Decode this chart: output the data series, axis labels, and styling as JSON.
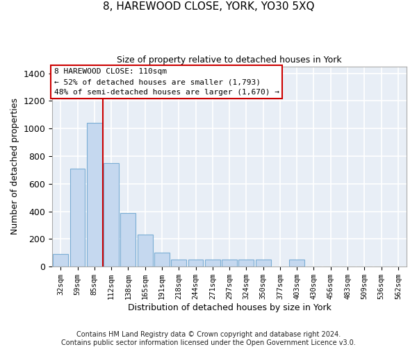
{
  "title": "8, HAREWOOD CLOSE, YORK, YO30 5XQ",
  "subtitle": "Size of property relative to detached houses in York",
  "xlabel": "Distribution of detached houses by size in York",
  "ylabel": "Number of detached properties",
  "bar_color": "#c5d8ef",
  "bar_edge_color": "#7aadd4",
  "background_color": "#e8eef6",
  "grid_color": "#ffffff",
  "categories": [
    "32sqm",
    "59sqm",
    "85sqm",
    "112sqm",
    "138sqm",
    "165sqm",
    "191sqm",
    "218sqm",
    "244sqm",
    "271sqm",
    "297sqm",
    "324sqm",
    "350sqm",
    "377sqm",
    "403sqm",
    "430sqm",
    "456sqm",
    "483sqm",
    "509sqm",
    "536sqm",
    "562sqm"
  ],
  "values": [
    90,
    710,
    1040,
    750,
    390,
    230,
    100,
    50,
    50,
    50,
    50,
    50,
    50,
    0,
    50,
    0,
    0,
    0,
    0,
    0,
    0
  ],
  "annotation_text": "8 HAREWOOD CLOSE: 110sqm\n← 52% of detached houses are smaller (1,793)\n48% of semi-detached houses are larger (1,670) →",
  "vline_color": "#cc0000",
  "vline_bin_index": 2,
  "annotation_box_color": "#ffffff",
  "annotation_box_edge_color": "#cc0000",
  "footer_text": "Contains HM Land Registry data © Crown copyright and database right 2024.\nContains public sector information licensed under the Open Government Licence v3.0.",
  "ylim": [
    0,
    1450
  ],
  "yticks": [
    0,
    200,
    400,
    600,
    800,
    1000,
    1200,
    1400
  ],
  "figsize": [
    6.0,
    5.0
  ],
  "dpi": 100
}
